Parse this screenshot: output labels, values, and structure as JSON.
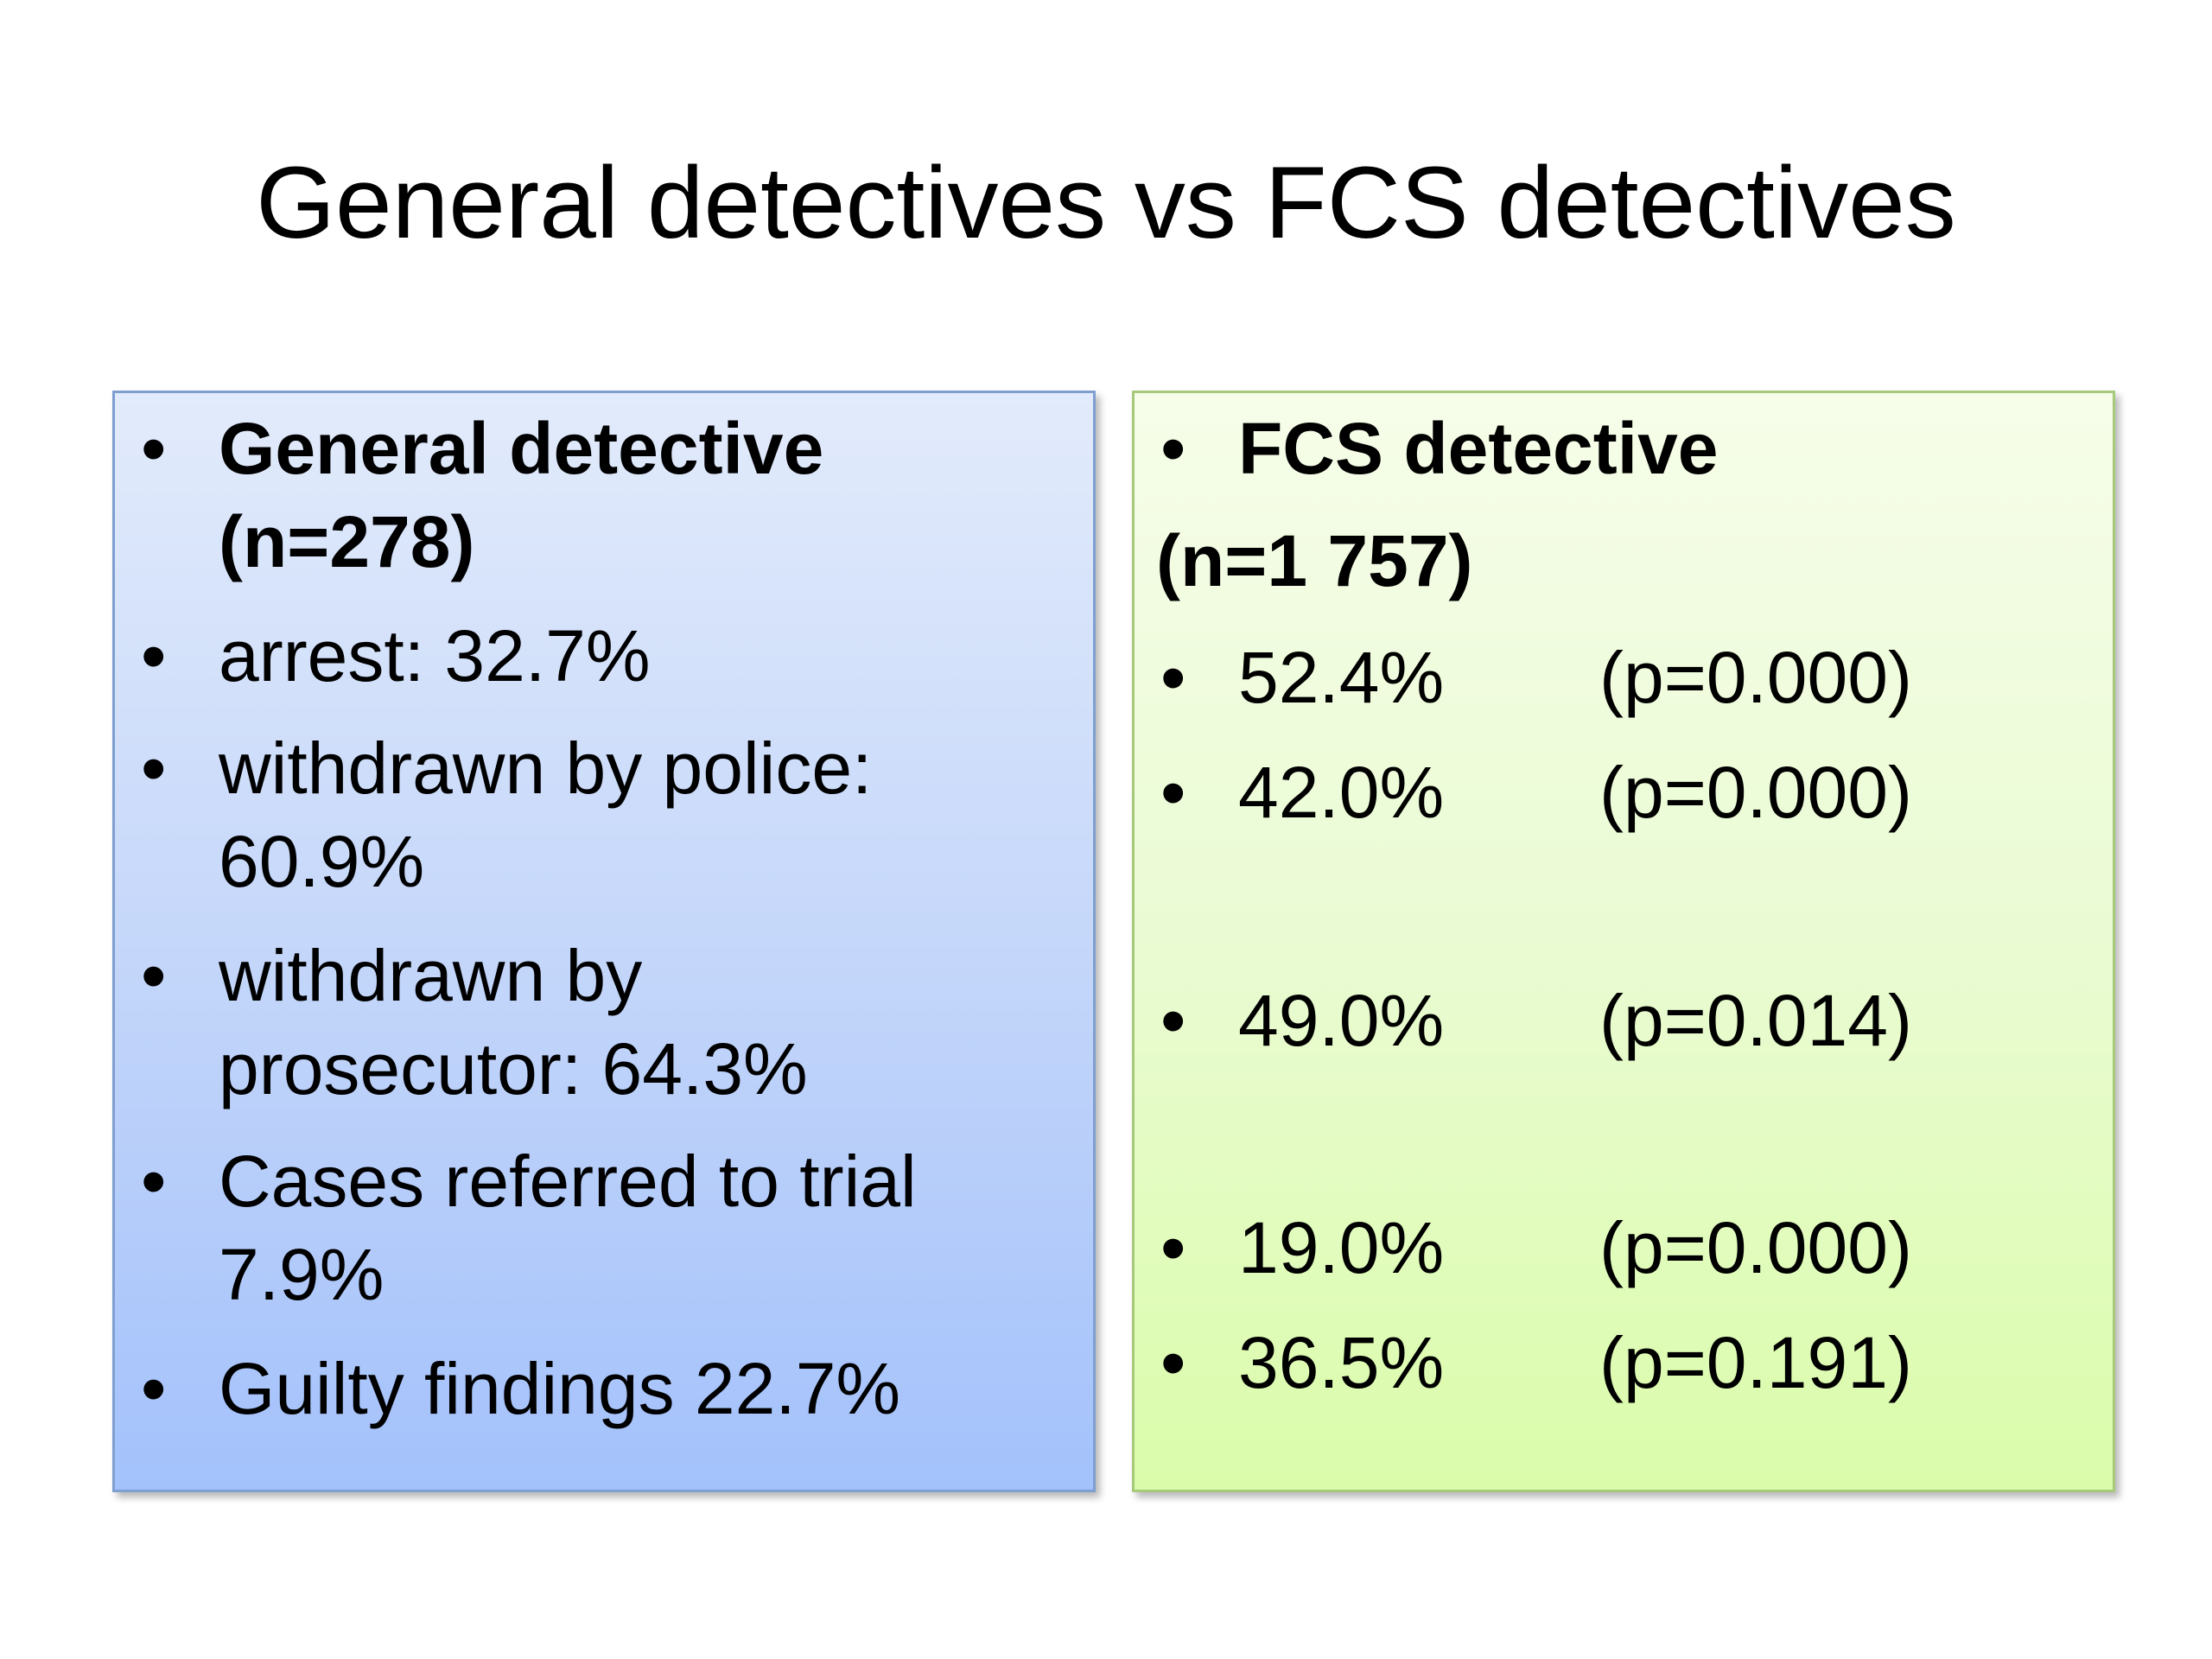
{
  "title": "General detectives vs FCS detectives",
  "left_panel": {
    "heading_line1": "General detective",
    "heading_line2": "(n=278)",
    "items": [
      {
        "line1": "arrest: 32.7%"
      },
      {
        "line1": "withdrawn by police:",
        "line2": "60.9%"
      },
      {
        "line1": "withdrawn by",
        "line2": "prosecutor: 64.3%"
      },
      {
        "line1": "Cases referred to trial",
        "line2": "7.9%"
      },
      {
        "line1": "Guilty findings 22.7%"
      }
    ],
    "bullet": "•"
  },
  "right_panel": {
    "heading_line1": "FCS detective",
    "heading_line2": "(n=1 757)",
    "items": [
      {
        "value": "52.4%",
        "p": "(p=0.000)"
      },
      {
        "value": "42.0%",
        "p": "(p=0.000)"
      },
      {
        "value": "49.0%",
        "p": "(p=0.014)"
      },
      {
        "value": "19.0%",
        "p": "(p=0.000)"
      },
      {
        "value": "36.5%",
        "p": "(p=0.191)"
      }
    ],
    "bullet": "•"
  },
  "colors": {
    "left_panel_border": "#7e9fd0",
    "left_panel_top": "#e2ebfb",
    "left_panel_bottom": "#a3c1fb",
    "right_panel_border": "#a6c97a",
    "right_panel_top": "#f6fde9",
    "right_panel_bottom": "#dafcaa"
  }
}
